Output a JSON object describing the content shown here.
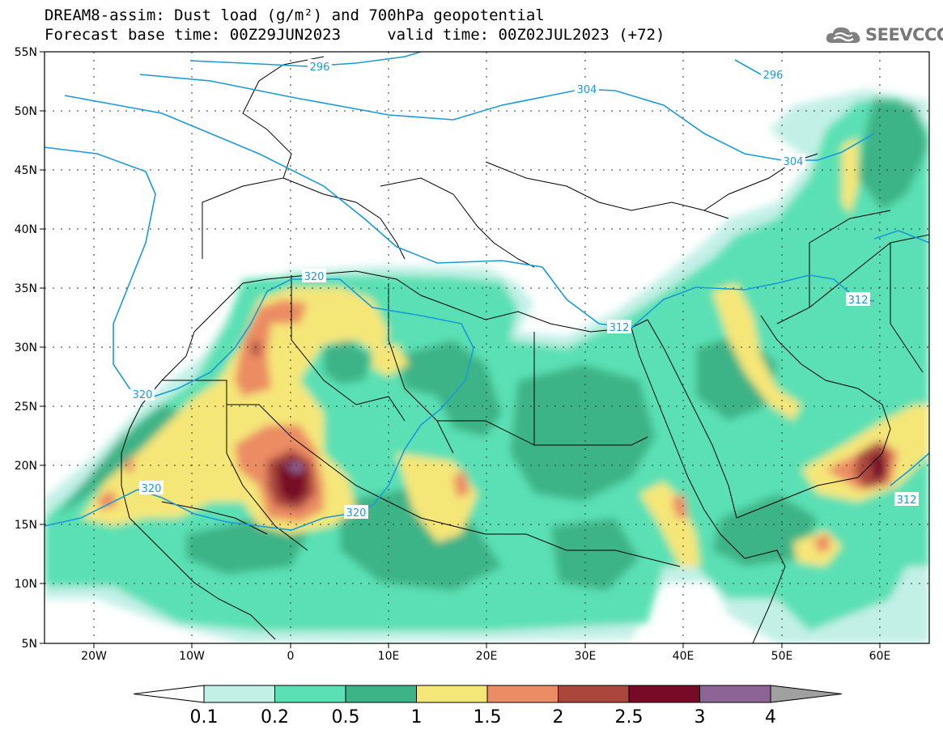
{
  "title": {
    "line1": "DREAM8-assim: Dust load (g/m²) and 700hPa geopotential",
    "line2": "Forecast base time: 00Z29JUN2023     valid time: 00Z02JUL2023 (+72)"
  },
  "logo": {
    "icon": "cloud-icon",
    "text": "SEEVCCC"
  },
  "map": {
    "lon_range": [
      -25,
      65
    ],
    "lat_range": [
      5,
      55
    ],
    "lat_ticks": [
      "55N",
      "50N",
      "45N",
      "40N",
      "35N",
      "30N",
      "25N",
      "20N",
      "15N",
      "10N",
      "5N"
    ],
    "lon_ticks": [
      "20W",
      "10W",
      "0",
      "10E",
      "20E",
      "30E",
      "40E",
      "50E",
      "60E"
    ]
  },
  "contour_labels": [
    {
      "id": "c296a",
      "text": "296"
    },
    {
      "id": "c296b",
      "text": "296"
    },
    {
      "id": "c304a",
      "text": "304"
    },
    {
      "id": "c304b",
      "text": "304"
    },
    {
      "id": "c320a",
      "text": "320"
    },
    {
      "id": "c320b",
      "text": "320"
    },
    {
      "id": "c320c",
      "text": "320"
    },
    {
      "id": "c320d",
      "text": "320"
    },
    {
      "id": "c312a",
      "text": "312"
    },
    {
      "id": "c312b",
      "text": "312"
    },
    {
      "id": "c312c",
      "text": "312"
    }
  ],
  "colorbar": {
    "labels": [
      "0.1",
      "0.2",
      "0.5",
      "1",
      "1.5",
      "2",
      "2.5",
      "3",
      "4"
    ],
    "colors": [
      "#c3f0e6",
      "#5ae0b4",
      "#3cb487",
      "#f5e678",
      "#eb8c64",
      "#aa463c",
      "#780a28",
      "#8c6496"
    ],
    "under_color": "#ffffff",
    "over_color": "#a0a0a0"
  }
}
